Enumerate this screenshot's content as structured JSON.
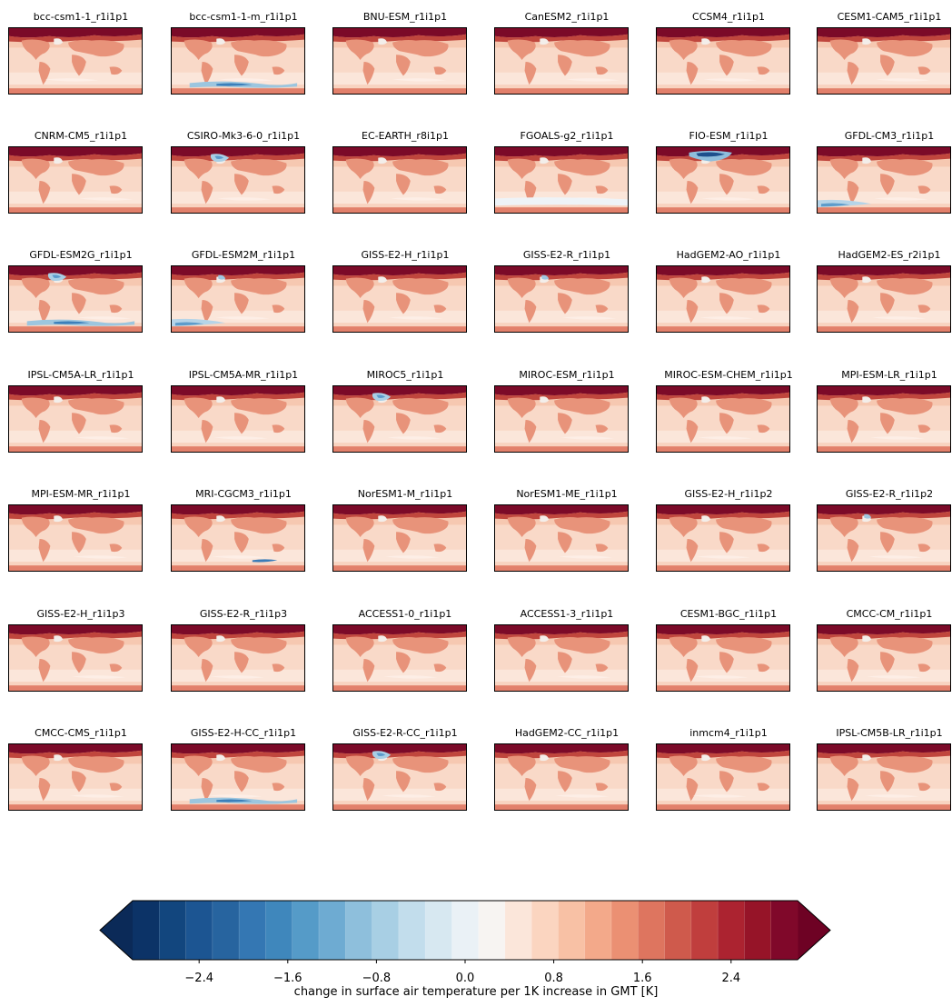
{
  "chart_data": {
    "type": "heatmap",
    "panels": [
      {
        "name": "bcc-csm1-1_r1i1p1",
        "cold_patches": []
      },
      {
        "name": "bcc-csm1-1-m_r1i1p1",
        "cold_patches": [
          "southern-ocean"
        ]
      },
      {
        "name": "BNU-ESM_r1i1p1",
        "cold_patches": []
      },
      {
        "name": "CanESM2_r1i1p1",
        "cold_patches": []
      },
      {
        "name": "CCSM4_r1i1p1",
        "cold_patches": []
      },
      {
        "name": "CESM1-CAM5_r1i1p1",
        "cold_patches": []
      },
      {
        "name": "CNRM-CM5_r1i1p1",
        "cold_patches": []
      },
      {
        "name": "CSIRO-Mk3-6-0_r1i1p1",
        "cold_patches": [
          "north-atlantic"
        ]
      },
      {
        "name": "EC-EARTH_r8i1p1",
        "cold_patches": []
      },
      {
        "name": "FGOALS-g2_r1i1p1",
        "cold_patches": [
          "southern-ocean-light"
        ]
      },
      {
        "name": "FIO-ESM_r1i1p1",
        "cold_patches": [
          "north-atlantic-strong"
        ]
      },
      {
        "name": "GFDL-CM3_r1i1p1",
        "cold_patches": [
          "southern-ocean-west"
        ]
      },
      {
        "name": "GFDL-ESM2G_r1i1p1",
        "cold_patches": [
          "north-atlantic",
          "southern-ocean"
        ]
      },
      {
        "name": "GFDL-ESM2M_r1i1p1",
        "cold_patches": [
          "north-atlantic-small",
          "southern-ocean-west"
        ]
      },
      {
        "name": "GISS-E2-H_r1i1p1",
        "cold_patches": []
      },
      {
        "name": "GISS-E2-R_r1i1p1",
        "cold_patches": [
          "north-atlantic-small"
        ]
      },
      {
        "name": "HadGEM2-AO_r1i1p1",
        "cold_patches": []
      },
      {
        "name": "HadGEM2-ES_r2i1p1",
        "cold_patches": []
      },
      {
        "name": "IPSL-CM5A-LR_r1i1p1",
        "cold_patches": []
      },
      {
        "name": "IPSL-CM5A-MR_r1i1p1",
        "cold_patches": []
      },
      {
        "name": "MIROC5_r1i1p1",
        "cold_patches": [
          "north-atlantic"
        ]
      },
      {
        "name": "MIROC-ESM_r1i1p1",
        "cold_patches": []
      },
      {
        "name": "MIROC-ESM-CHEM_r1i1p1",
        "cold_patches": []
      },
      {
        "name": "MPI-ESM-LR_r1i1p1",
        "cold_patches": []
      },
      {
        "name": "MPI-ESM-MR_r1i1p1",
        "cold_patches": []
      },
      {
        "name": "MRI-CGCM3_r1i1p1",
        "cold_patches": [
          "southern-ocean-east"
        ]
      },
      {
        "name": "NorESM1-M_r1i1p1",
        "cold_patches": []
      },
      {
        "name": "NorESM1-ME_r1i1p1",
        "cold_patches": []
      },
      {
        "name": "GISS-E2-H_r1i1p2",
        "cold_patches": []
      },
      {
        "name": "GISS-E2-R_r1i1p2",
        "cold_patches": [
          "north-atlantic-small"
        ]
      },
      {
        "name": "GISS-E2-H_r1i1p3",
        "cold_patches": []
      },
      {
        "name": "GISS-E2-R_r1i1p3",
        "cold_patches": []
      },
      {
        "name": "ACCESS1-0_r1i1p1",
        "cold_patches": []
      },
      {
        "name": "ACCESS1-3_r1i1p1",
        "cold_patches": []
      },
      {
        "name": "CESM1-BGC_r1i1p1",
        "cold_patches": []
      },
      {
        "name": "CMCC-CM_r1i1p1",
        "cold_patches": []
      },
      {
        "name": "CMCC-CMS_r1i1p1",
        "cold_patches": []
      },
      {
        "name": "GISS-E2-H-CC_r1i1p1",
        "cold_patches": [
          "southern-ocean"
        ]
      },
      {
        "name": "GISS-E2-R-CC_r1i1p1",
        "cold_patches": [
          "north-atlantic"
        ]
      },
      {
        "name": "HadGEM2-CC_r1i1p1",
        "cold_patches": []
      },
      {
        "name": "inmcm4_r1i1p1",
        "cold_patches": []
      },
      {
        "name": "IPSL-CM5B-LR_r1i1p1",
        "cold_patches": []
      }
    ],
    "colorbar": {
      "label": "change in surface air temperature per 1K increase in GMT [K]",
      "vmin": -3.0,
      "vmax": 3.0,
      "levels": 25,
      "extend": "both",
      "cmap": "RdBu_r",
      "ticks": [
        -2.4,
        -1.6,
        -0.8,
        0.0,
        0.8,
        1.6,
        2.4
      ],
      "tick_labels": [
        "−2.4",
        "−1.6",
        "−0.8",
        "0.0",
        "0.8",
        "1.6",
        "2.4"
      ]
    }
  }
}
